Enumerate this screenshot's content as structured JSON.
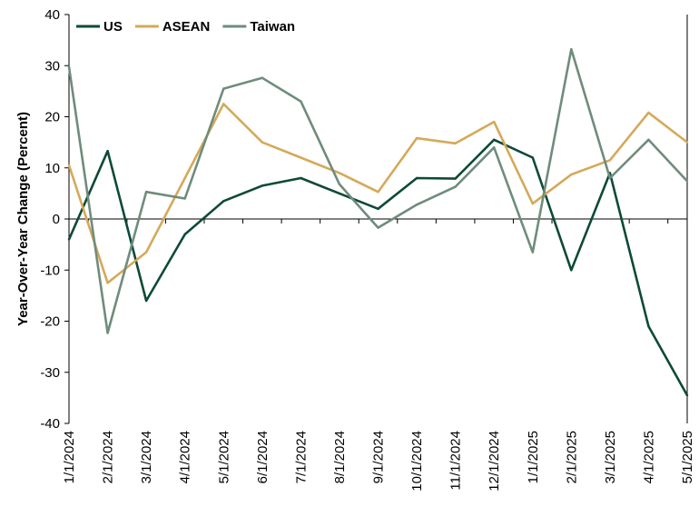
{
  "chart_data": {
    "type": "line",
    "title": "",
    "xlabel": "",
    "ylabel": "Year-Over-Year Change (Percent)",
    "ylim": [
      -40,
      40
    ],
    "yticks": [
      -40,
      -30,
      -20,
      -10,
      0,
      10,
      20,
      30,
      40
    ],
    "categories": [
      "1/1/2024",
      "2/1/2024",
      "3/1/2024",
      "4/1/2024",
      "5/1/2024",
      "6/1/2024",
      "7/1/2024",
      "8/1/2024",
      "9/1/2024",
      "10/1/2024",
      "11/1/2024",
      "12/1/2024",
      "1/1/2025",
      "2/1/2025",
      "3/1/2025",
      "4/1/2025",
      "5/1/2025"
    ],
    "grid": false,
    "legend_position": "top-left",
    "series": [
      {
        "name": "US",
        "color": "#0d4a37",
        "values": [
          -4.0,
          13.3,
          -16.0,
          -3.0,
          3.5,
          6.5,
          8.0,
          5.0,
          2.0,
          8.0,
          7.9,
          15.5,
          12.0,
          -10.0,
          9.0,
          -21.0,
          -34.5
        ]
      },
      {
        "name": "ASEAN",
        "color": "#d4a95a",
        "values": [
          10.5,
          -12.5,
          -6.5,
          8.0,
          22.5,
          15.0,
          12.0,
          9.0,
          5.3,
          15.8,
          14.8,
          19.0,
          3.0,
          8.7,
          11.5,
          20.8,
          15.0
        ]
      },
      {
        "name": "Taiwan",
        "color": "#6f8c7c",
        "values": [
          29.8,
          -22.3,
          5.3,
          4.0,
          25.5,
          27.6,
          23.0,
          6.8,
          -1.7,
          2.8,
          6.3,
          14.0,
          -6.5,
          33.2,
          8.0,
          15.5,
          7.4
        ]
      }
    ]
  }
}
